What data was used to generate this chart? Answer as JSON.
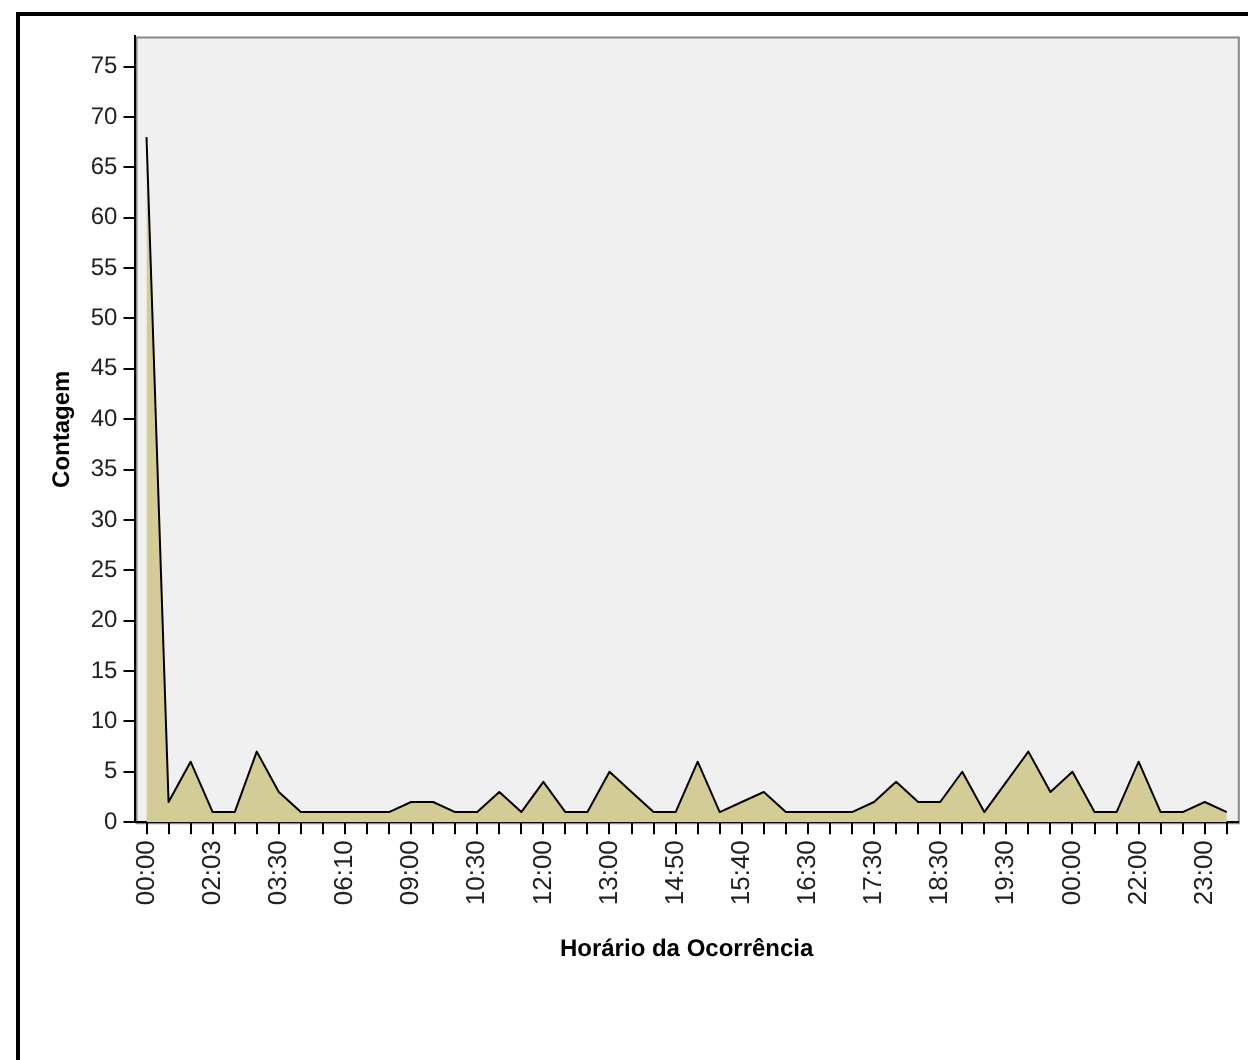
{
  "chart_data": {
    "type": "area",
    "xlabel": "Horário da Ocorrência",
    "ylabel": "Contagem",
    "categories": [
      "00:00",
      null,
      null,
      "02:03",
      null,
      null,
      "03:30",
      null,
      null,
      "06:10",
      null,
      null,
      "09:00",
      null,
      null,
      "10:30",
      null,
      null,
      "12:00",
      null,
      null,
      "13:00",
      null,
      null,
      "14:50",
      null,
      null,
      "15:40",
      null,
      null,
      "16:30",
      null,
      null,
      "17:30",
      null,
      null,
      "18:30",
      null,
      null,
      "19:30",
      null,
      null,
      "00:00",
      null,
      null,
      "22:00",
      null,
      null,
      "23:00",
      null
    ],
    "series": [
      {
        "color": "#d4cc96",
        "values": [
          68,
          2,
          6,
          1,
          1,
          7,
          3,
          1,
          1,
          1,
          1,
          1,
          2,
          2,
          1,
          1,
          3,
          1,
          4,
          1,
          1,
          5,
          3,
          1,
          1,
          6,
          1,
          2,
          3,
          1,
          1,
          1,
          1,
          2,
          4,
          2,
          2,
          5,
          1,
          4,
          7,
          3,
          5,
          1,
          1,
          6,
          1,
          1,
          2,
          1
        ]
      }
    ],
    "ylim": [
      0,
      78
    ],
    "yticks": [
      0,
      5,
      10,
      15,
      20,
      25,
      30,
      35,
      40,
      45,
      50,
      55,
      60,
      65,
      70,
      75
    ],
    "legend": false
  }
}
